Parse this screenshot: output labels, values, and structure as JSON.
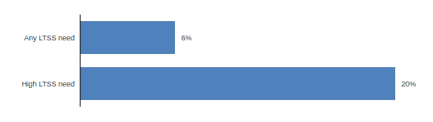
{
  "chart_data": {
    "type": "bar",
    "orientation": "horizontal",
    "categories": [
      "Any LTSS need",
      "High LTSS need"
    ],
    "values": [
      6,
      20
    ],
    "value_labels": [
      "6%",
      "20%"
    ],
    "color": "#4f81bd",
    "data_labels": true,
    "tick_labels": "y",
    "grid": false
  }
}
